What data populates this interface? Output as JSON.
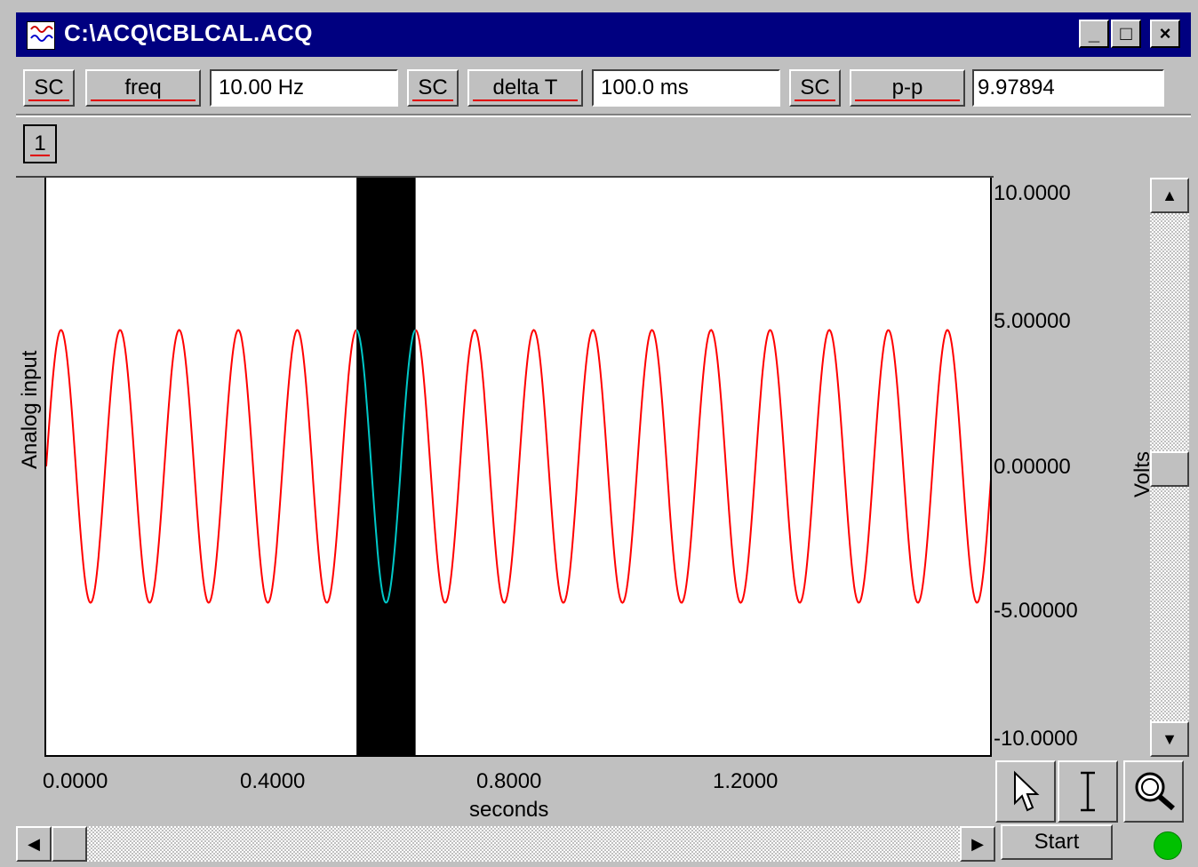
{
  "window": {
    "title": "C:\\ACQ\\CBLCAL.ACQ",
    "controls": [
      "_",
      "□",
      "×"
    ]
  },
  "measurements": [
    {
      "channel": "SC",
      "type": "freq",
      "value": "10.00 Hz"
    },
    {
      "channel": "SC",
      "type": "delta T",
      "value": "100.0 ms"
    },
    {
      "channel": "SC",
      "type": "p-p",
      "value": "9.97894"
    }
  ],
  "channel_button": "1",
  "chart_data": {
    "type": "line",
    "ylabel": "Analog input",
    "y_units_label": "Volts",
    "xlabel": "seconds",
    "xlim": [
      0.0,
      1.6
    ],
    "ylim": [
      -10.0,
      10.0
    ],
    "x_ticks": [
      "0.0000",
      "0.4000",
      "0.8000",
      "1.2000"
    ],
    "y_ticks": [
      "10.0000",
      "5.00000",
      "0.00000",
      "-5.00000",
      "-10.0000"
    ],
    "series": [
      {
        "color": "#ff0000",
        "frequency_hz": 10.0,
        "amplitude": 5.0,
        "x_start": 0.0,
        "x_end": 1.6
      }
    ],
    "selection": {
      "x_start": 0.525,
      "x_end": 0.625,
      "trace_color": "#00c8c8",
      "fill": "#000000"
    },
    "grid": false
  },
  "tools": [
    "arrow-tool",
    "ibeam-tool",
    "zoom-tool"
  ],
  "start_label": "Start",
  "status_led_color": "#00c000"
}
